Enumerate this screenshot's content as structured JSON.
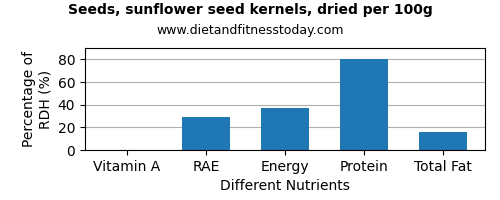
{
  "chart_data": {
    "type": "bar",
    "title": "Seeds, sunflower seed kernels, dried per 100g",
    "subtitle": "www.dietandfitnesstoday.com",
    "xlabel": "Different Nutrients",
    "ylabel": "Percentage of\nRDH (%)",
    "categories": [
      "Vitamin A",
      "RAE",
      "Energy",
      "Protein",
      "Total Fat"
    ],
    "values": [
      0,
      29,
      37,
      80,
      16
    ],
    "ylim": [
      0,
      90
    ],
    "yticks": [
      0,
      20,
      40,
      60,
      80
    ],
    "grid": true
  }
}
